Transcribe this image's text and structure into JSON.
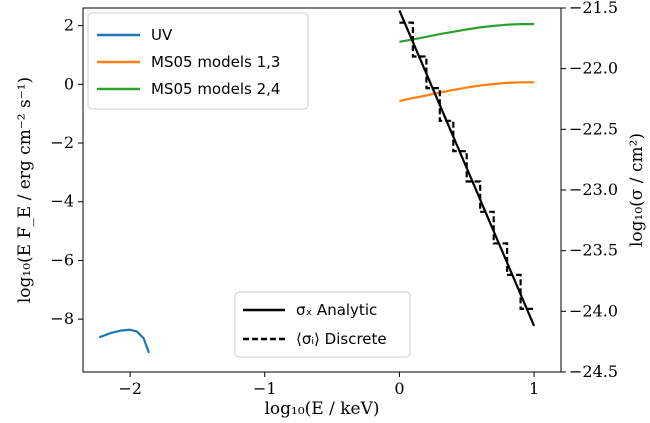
{
  "chart_data": {
    "type": "line",
    "xlabel": "log₁₀(E / keV)",
    "ylabel_left": "log₁₀(E F_E / erg cm⁻² s⁻¹)",
    "ylabel_right": "log₁₀(σ / cm²)",
    "xlim": [
      -2.35,
      1.2
    ],
    "ylim_left": [
      -9.8,
      2.6
    ],
    "ylim_right": [
      -24.5,
      -21.5
    ],
    "x_ticks": [
      -2,
      -1,
      0,
      1
    ],
    "x_tick_labels": [
      "−2",
      "−1",
      "0",
      "1"
    ],
    "y_left_ticks": [
      -8,
      -6,
      -4,
      -2,
      0,
      2
    ],
    "y_left_tick_labels": [
      "−8",
      "−6",
      "−4",
      "−2",
      "0",
      "2"
    ],
    "y_right_ticks": [
      -24.5,
      -24.0,
      -23.5,
      -23.0,
      -22.5,
      -22.0,
      -21.5
    ],
    "y_right_tick_labels": [
      "−24.5",
      "−24.0",
      "−23.5",
      "−23.0",
      "−22.5",
      "−22.0",
      "−21.5"
    ],
    "legend_upper": {
      "position": "upper-left",
      "entries": [
        "UV",
        "MS05 models 1,3",
        "MS05 models 2,4"
      ]
    },
    "legend_lower": {
      "position": "lower-center",
      "entries": [
        "σₓ Analytic",
        "⟨σᵢ⟩ Discrete"
      ]
    },
    "series": [
      {
        "name": "UV",
        "axis": "left",
        "color": "#1f77b4",
        "points": [
          [
            -2.23,
            -8.62
          ],
          [
            -2.15,
            -8.48
          ],
          [
            -2.07,
            -8.39
          ],
          [
            -2.0,
            -8.36
          ],
          [
            -1.95,
            -8.42
          ],
          [
            -1.9,
            -8.65
          ],
          [
            -1.86,
            -9.15
          ]
        ]
      },
      {
        "name": "MS05 models 1,3",
        "axis": "left",
        "color": "#ff7f0e",
        "points": [
          [
            0.0,
            -0.57
          ],
          [
            0.1,
            -0.47
          ],
          [
            0.2,
            -0.38
          ],
          [
            0.3,
            -0.28
          ],
          [
            0.4,
            -0.19
          ],
          [
            0.5,
            -0.11
          ],
          [
            0.6,
            -0.04
          ],
          [
            0.7,
            0.01
          ],
          [
            0.8,
            0.05
          ],
          [
            0.9,
            0.07
          ],
          [
            1.0,
            0.07
          ]
        ]
      },
      {
        "name": "MS05 models 2,4",
        "axis": "left",
        "color": "#2ca02c",
        "points": [
          [
            0.0,
            1.45
          ],
          [
            0.1,
            1.53
          ],
          [
            0.2,
            1.62
          ],
          [
            0.3,
            1.71
          ],
          [
            0.4,
            1.79
          ],
          [
            0.5,
            1.87
          ],
          [
            0.6,
            1.94
          ],
          [
            0.7,
            1.99
          ],
          [
            0.8,
            2.03
          ],
          [
            0.9,
            2.05
          ],
          [
            1.0,
            2.05
          ]
        ]
      },
      {
        "name": "σₓ Analytic",
        "axis": "right",
        "color": "#000000",
        "style": "solid",
        "points": [
          [
            0.0,
            -21.52
          ],
          [
            1.0,
            -24.12
          ]
        ]
      },
      {
        "name": "⟨σᵢ⟩ Discrete",
        "axis": "right",
        "color": "#000000",
        "style": "dashed",
        "points": [
          [
            0.0,
            -21.62
          ],
          [
            0.1,
            -21.62
          ],
          [
            0.1,
            -21.9
          ],
          [
            0.2,
            -21.9
          ],
          [
            0.2,
            -22.16
          ],
          [
            0.3,
            -22.16
          ],
          [
            0.3,
            -22.43
          ],
          [
            0.4,
            -22.43
          ],
          [
            0.4,
            -22.68
          ],
          [
            0.5,
            -22.68
          ],
          [
            0.5,
            -22.93
          ],
          [
            0.6,
            -22.93
          ],
          [
            0.6,
            -23.18
          ],
          [
            0.7,
            -23.18
          ],
          [
            0.7,
            -23.44
          ],
          [
            0.8,
            -23.44
          ],
          [
            0.8,
            -23.7
          ],
          [
            0.9,
            -23.7
          ],
          [
            0.9,
            -23.98
          ],
          [
            1.0,
            -23.98
          ]
        ]
      }
    ]
  }
}
